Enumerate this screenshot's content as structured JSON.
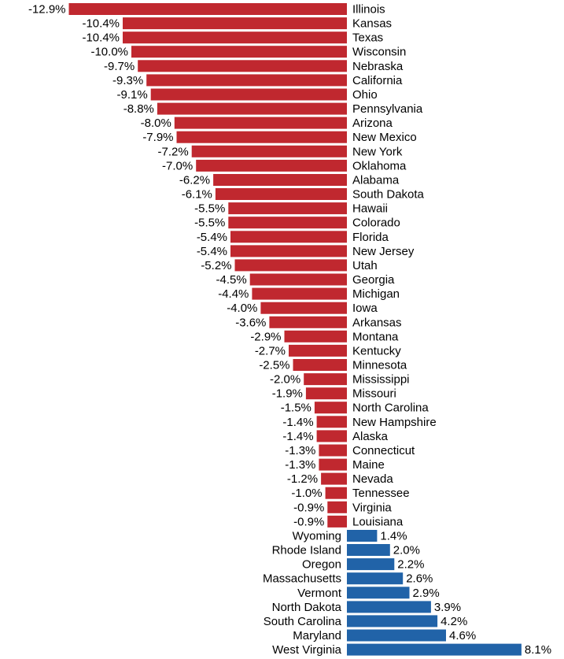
{
  "chart_data": {
    "type": "bar",
    "orientation": "horizontal",
    "title": "",
    "xlabel": "",
    "ylabel": "",
    "grid": false,
    "legend": "none",
    "colors": {
      "negative": "#c0282f",
      "positive": "#2163a8"
    },
    "categories": [
      "Illinois",
      "Kansas",
      "Texas",
      "Wisconsin",
      "Nebraska",
      "California",
      "Ohio",
      "Pennsylvania",
      "Arizona",
      "New Mexico",
      "New York",
      "Oklahoma",
      "Alabama",
      "South Dakota",
      "Hawaii",
      "Colorado",
      "Florida",
      "New Jersey",
      "Utah",
      "Georgia",
      "Michigan",
      "Iowa",
      "Arkansas",
      "Montana",
      "Kentucky",
      "Minnesota",
      "Mississippi",
      "Missouri",
      "North Carolina",
      "New Hampshire",
      "Alaska",
      "Connecticut",
      "Maine",
      "Nevada",
      "Tennessee",
      "Virginia",
      "Louisiana",
      "Wyoming",
      "Rhode Island",
      "Oregon",
      "Massachusetts",
      "Vermont",
      "North Dakota",
      "South Carolina",
      "Maryland",
      "West Virginia"
    ],
    "values": [
      -12.9,
      -10.4,
      -10.4,
      -10.0,
      -9.7,
      -9.3,
      -9.1,
      -8.8,
      -8.0,
      -7.9,
      -7.2,
      -7.0,
      -6.2,
      -6.1,
      -5.5,
      -5.5,
      -5.4,
      -5.4,
      -5.2,
      -4.5,
      -4.4,
      -4.0,
      -3.6,
      -2.9,
      -2.7,
      -2.5,
      -2.0,
      -1.9,
      -1.5,
      -1.4,
      -1.4,
      -1.3,
      -1.3,
      -1.2,
      -1.0,
      -0.9,
      -0.9,
      1.4,
      2.0,
      2.2,
      2.6,
      2.9,
      3.9,
      4.2,
      4.6,
      8.1
    ],
    "value_labels": [
      "-12.9%",
      "-10.4%",
      "-10.4%",
      "-10.0%",
      "-9.7%",
      "-9.3%",
      "-9.1%",
      "-8.8%",
      "-8.0%",
      "-7.9%",
      "-7.2%",
      "-7.0%",
      "-6.2%",
      "-6.1%",
      "-5.5%",
      "-5.5%",
      "-5.4%",
      "-5.4%",
      "-5.2%",
      "-4.5%",
      "-4.4%",
      "-4.0%",
      "-3.6%",
      "-2.9%",
      "-2.7%",
      "-2.5%",
      "-2.0%",
      "-1.9%",
      "-1.5%",
      "-1.4%",
      "-1.4%",
      "-1.3%",
      "-1.3%",
      "-1.2%",
      "-1.0%",
      "-0.9%",
      "-0.9%",
      "1.4%",
      "2.0%",
      "2.2%",
      "2.6%",
      "2.9%",
      "3.9%",
      "4.2%",
      "4.6%",
      "8.1%"
    ]
  }
}
